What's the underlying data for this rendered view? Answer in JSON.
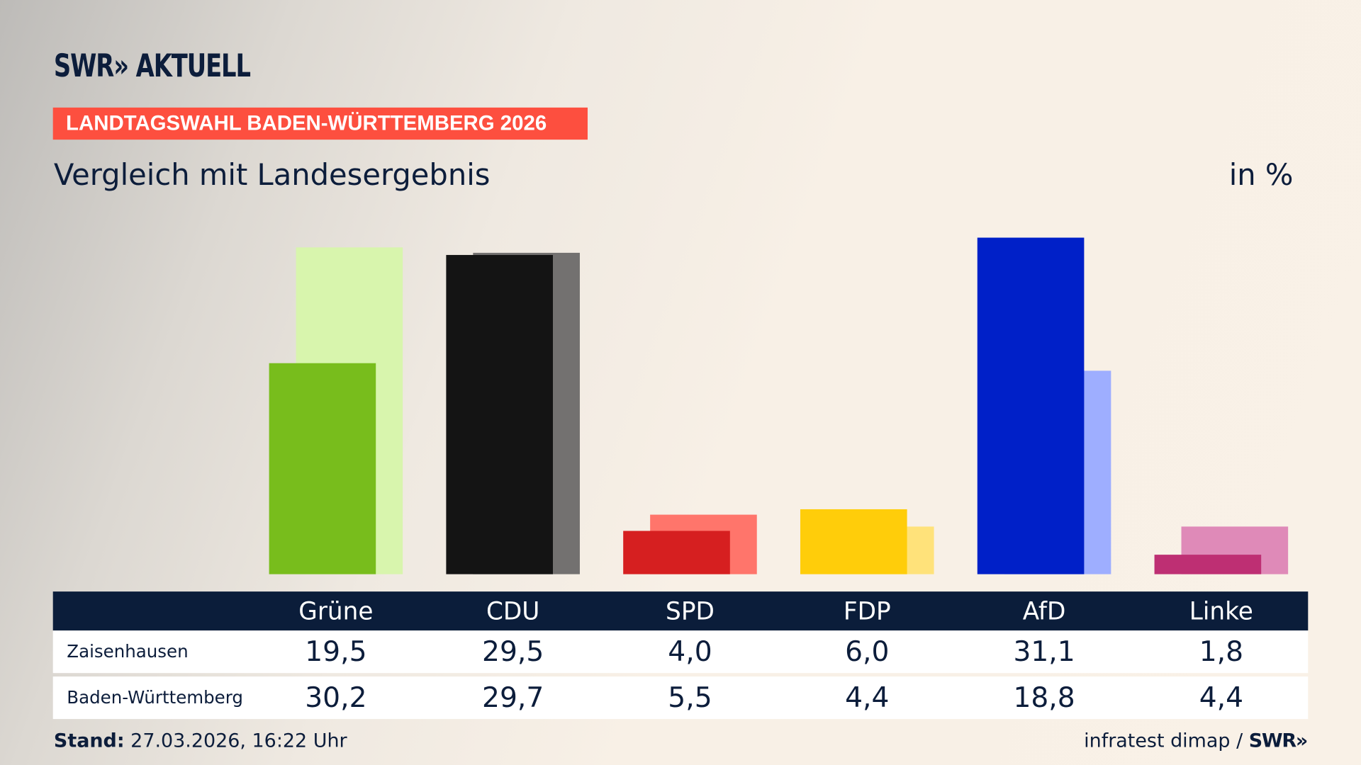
{
  "header": {
    "logo": "SWR» AKTUELL",
    "banner": "LANDTAGSWAHL BADEN-WÜRTTEMBERG 2026",
    "subtitle": "Vergleich mit Landesergebnis",
    "unit": "in %"
  },
  "chart_data": {
    "type": "bar",
    "categories": [
      "Grüne",
      "CDU",
      "SPD",
      "FDP",
      "AfD",
      "Linke"
    ],
    "series": [
      {
        "name": "Zaisenhausen",
        "values": [
          19.5,
          29.5,
          4.0,
          6.0,
          31.1,
          1.8
        ],
        "labels": [
          "19,5",
          "29,5",
          "4,0",
          "6,0",
          "31,1",
          "1,8"
        ]
      },
      {
        "name": "Baden-Württemberg",
        "values": [
          30.2,
          29.7,
          5.5,
          4.4,
          18.8,
          4.4
        ],
        "labels": [
          "30,2",
          "29,7",
          "5,5",
          "4,4",
          "18,8",
          "4,4"
        ]
      }
    ],
    "colors": {
      "Zaisenhausen": [
        "#78bd1c",
        "#141414",
        "#d61f20",
        "#ffcd0a",
        "#0020c8",
        "#be2f73"
      ],
      "Baden-Württemberg": [
        "#d8f5ad",
        "#737170",
        "#ff756b",
        "#ffe27a",
        "#9eaeff",
        "#df8ab8"
      ]
    },
    "ylim": [
      0,
      31.1
    ],
    "grid": false
  },
  "footer": {
    "stand_label": "Stand:",
    "stand_value": " 27.03.2026, 16:22 Uhr",
    "source": "infratest dimap / ",
    "source_logo": "SWR»"
  }
}
